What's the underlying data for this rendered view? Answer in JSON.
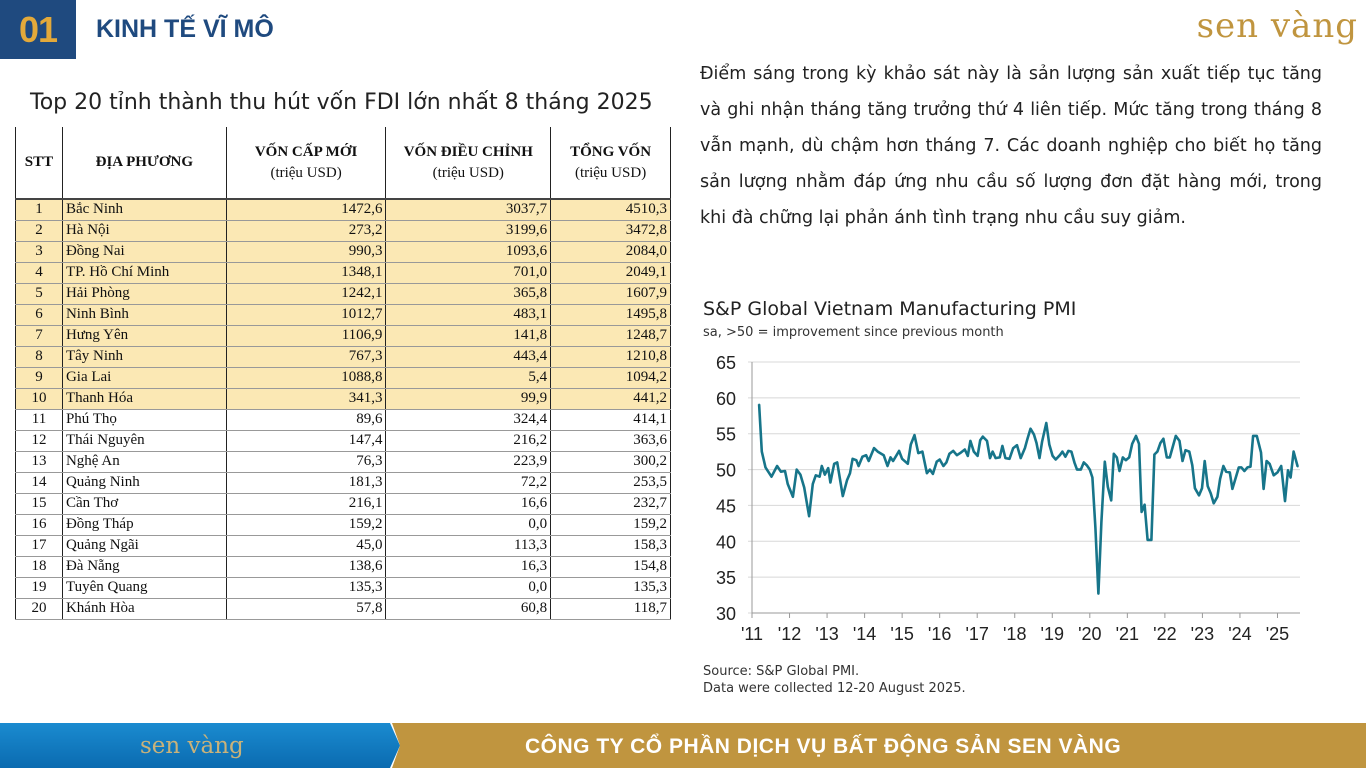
{
  "header": {
    "section_number": "01",
    "section_title": "KINH TẾ VĨ MÔ",
    "logo": "sen vàng"
  },
  "table": {
    "title": "Top 20 tỉnh thành thu hút vốn FDI lớn nhất 8 tháng 2025",
    "columns": [
      "STT",
      "ĐỊA PHƯƠNG",
      "VỐN CẤP MỚI",
      "(triệu USD)",
      "VỐN ĐIỀU CHỈNH",
      "(triệu USD)",
      "TỔNG VỐN",
      "(triệu USD)"
    ],
    "rows": [
      [
        "1",
        "Bắc Ninh",
        "1472,6",
        "3037,7",
        "4510,3"
      ],
      [
        "2",
        "Hà Nội",
        "273,2",
        "3199,6",
        "3472,8"
      ],
      [
        "3",
        "Đồng Nai",
        "990,3",
        "1093,6",
        "2084,0"
      ],
      [
        "4",
        "TP. Hồ Chí Minh",
        "1348,1",
        "701,0",
        "2049,1"
      ],
      [
        "5",
        "Hải Phòng",
        "1242,1",
        "365,8",
        "1607,9"
      ],
      [
        "6",
        "Ninh Bình",
        "1012,7",
        "483,1",
        "1495,8"
      ],
      [
        "7",
        "Hưng Yên",
        "1106,9",
        "141,8",
        "1248,7"
      ],
      [
        "8",
        "Tây Ninh",
        "767,3",
        "443,4",
        "1210,8"
      ],
      [
        "9",
        "Gia Lai",
        "1088,8",
        "5,4",
        "1094,2"
      ],
      [
        "10",
        "Thanh Hóa",
        "341,3",
        "99,9",
        "441,2"
      ],
      [
        "11",
        "Phú Thọ",
        "89,6",
        "324,4",
        "414,1"
      ],
      [
        "12",
        "Thái Nguyên",
        "147,4",
        "216,2",
        "363,6"
      ],
      [
        "13",
        "Nghệ An",
        "76,3",
        "223,9",
        "300,2"
      ],
      [
        "14",
        "Quảng Ninh",
        "181,3",
        "72,2",
        "253,5"
      ],
      [
        "15",
        "Cần Thơ",
        "216,1",
        "16,6",
        "232,7"
      ],
      [
        "16",
        "Đồng Tháp",
        "159,2",
        "0,0",
        "159,2"
      ],
      [
        "17",
        "Quảng Ngãi",
        "45,0",
        "113,3",
        "158,3"
      ],
      [
        "18",
        "Đà Nẵng",
        "138,6",
        "16,3",
        "154,8"
      ],
      [
        "19",
        "Tuyên Quang",
        "135,3",
        "0,0",
        "135,3"
      ],
      [
        "20",
        "Khánh Hòa",
        "57,8",
        "60,8",
        "118,7"
      ]
    ],
    "highlight_color": "#fbe8b4"
  },
  "paragraph": "Điểm sáng trong kỳ khảo sát này là sản lượng sản xuất tiếp tục tăng và ghi nhận tháng tăng trưởng thứ 4 liên tiếp. Mức tăng trong tháng 8 vẫn mạnh, dù chậm hơn tháng 7. Các doanh nghiệp cho biết họ tăng sản lượng nhằm đáp ứng nhu cầu số lượng đơn đặt hàng mới, trong khi đà chững lại phản ánh tình trạng nhu cầu suy giảm.",
  "chart_data": {
    "type": "line",
    "title": "S&P Global Vietnam Manufacturing PMI",
    "subtitle": "sa, >50 = improvement since previous month",
    "ylim": [
      30,
      65
    ],
    "yticks": [
      30,
      35,
      40,
      45,
      50,
      55,
      60,
      65
    ],
    "xlim": [
      2011,
      2025.6
    ],
    "xticks": [
      "'11",
      "'12",
      "'13",
      "'14",
      "'15",
      "'16",
      "'17",
      "'18",
      "'19",
      "'20",
      "'21",
      "'22",
      "'23",
      "'24",
      "'25"
    ],
    "grid": true,
    "color": "#17758a",
    "series": [
      {
        "name": "PMI",
        "points": [
          [
            2011.19,
            59.1
          ],
          [
            2011.26,
            52.5
          ],
          [
            2011.36,
            50.3
          ],
          [
            2011.52,
            49.0
          ],
          [
            2011.67,
            50.5
          ],
          [
            2011.77,
            49.7
          ],
          [
            2011.88,
            49.8
          ],
          [
            2011.95,
            48.0
          ],
          [
            2012.09,
            46.2
          ],
          [
            2012.19,
            50.0
          ],
          [
            2012.29,
            49.3
          ],
          [
            2012.39,
            47.5
          ],
          [
            2012.52,
            43.5
          ],
          [
            2012.62,
            48.0
          ],
          [
            2012.7,
            49.2
          ],
          [
            2012.8,
            49.0
          ],
          [
            2012.86,
            50.5
          ],
          [
            2012.94,
            49.3
          ],
          [
            2013.03,
            50.2
          ],
          [
            2013.09,
            48.2
          ],
          [
            2013.19,
            50.8
          ],
          [
            2013.27,
            51.0
          ],
          [
            2013.42,
            46.3
          ],
          [
            2013.53,
            48.5
          ],
          [
            2013.61,
            49.5
          ],
          [
            2013.68,
            51.5
          ],
          [
            2013.78,
            51.3
          ],
          [
            2013.84,
            50.5
          ],
          [
            2013.94,
            51.8
          ],
          [
            2014.04,
            52.0
          ],
          [
            2014.11,
            51.2
          ],
          [
            2014.25,
            53.0
          ],
          [
            2014.35,
            52.5
          ],
          [
            2014.51,
            52.0
          ],
          [
            2014.61,
            50.5
          ],
          [
            2014.69,
            51.7
          ],
          [
            2014.76,
            51.2
          ],
          [
            2014.92,
            52.6
          ],
          [
            2015.0,
            51.5
          ],
          [
            2015.15,
            50.8
          ],
          [
            2015.23,
            53.5
          ],
          [
            2015.33,
            54.8
          ],
          [
            2015.43,
            52.3
          ],
          [
            2015.54,
            52.5
          ],
          [
            2015.66,
            49.5
          ],
          [
            2015.74,
            50.0
          ],
          [
            2015.82,
            49.4
          ],
          [
            2015.92,
            51.1
          ],
          [
            2016.0,
            51.4
          ],
          [
            2016.1,
            50.5
          ],
          [
            2016.18,
            51.0
          ],
          [
            2016.26,
            52.2
          ],
          [
            2016.36,
            52.6
          ],
          [
            2016.46,
            52.0
          ],
          [
            2016.57,
            52.4
          ],
          [
            2016.67,
            52.8
          ],
          [
            2016.75,
            51.9
          ],
          [
            2016.82,
            54.0
          ],
          [
            2016.91,
            52.5
          ],
          [
            2017.01,
            51.9
          ],
          [
            2017.08,
            54.1
          ],
          [
            2017.15,
            54.6
          ],
          [
            2017.26,
            54.0
          ],
          [
            2017.34,
            51.6
          ],
          [
            2017.41,
            52.5
          ],
          [
            2017.49,
            51.6
          ],
          [
            2017.6,
            51.7
          ],
          [
            2017.67,
            53.3
          ],
          [
            2017.75,
            51.6
          ],
          [
            2017.86,
            51.5
          ],
          [
            2017.96,
            53.0
          ],
          [
            2018.06,
            53.4
          ],
          [
            2018.16,
            51.6
          ],
          [
            2018.27,
            53.0
          ],
          [
            2018.34,
            54.3
          ],
          [
            2018.42,
            55.7
          ],
          [
            2018.51,
            54.9
          ],
          [
            2018.58,
            53.7
          ],
          [
            2018.66,
            51.6
          ],
          [
            2018.73,
            53.9
          ],
          [
            2018.84,
            56.5
          ],
          [
            2018.92,
            53.5
          ],
          [
            2019.01,
            51.9
          ],
          [
            2019.09,
            51.4
          ],
          [
            2019.2,
            52.0
          ],
          [
            2019.27,
            52.5
          ],
          [
            2019.35,
            51.8
          ],
          [
            2019.43,
            52.6
          ],
          [
            2019.51,
            52.5
          ],
          [
            2019.59,
            51.0
          ],
          [
            2019.66,
            50.0
          ],
          [
            2019.76,
            50.0
          ],
          [
            2019.84,
            51.0
          ],
          [
            2019.92,
            50.6
          ],
          [
            2020.0,
            50.0
          ],
          [
            2020.07,
            48.9
          ],
          [
            2020.15,
            41.9
          ],
          [
            2020.23,
            32.7
          ],
          [
            2020.31,
            42.7
          ],
          [
            2020.4,
            51.1
          ],
          [
            2020.48,
            47.6
          ],
          [
            2020.57,
            45.7
          ],
          [
            2020.64,
            52.2
          ],
          [
            2020.72,
            51.7
          ],
          [
            2020.79,
            49.8
          ],
          [
            2020.88,
            51.7
          ],
          [
            2020.96,
            51.3
          ],
          [
            2021.05,
            51.7
          ],
          [
            2021.13,
            53.6
          ],
          [
            2021.23,
            54.7
          ],
          [
            2021.31,
            53.6
          ],
          [
            2021.38,
            44.1
          ],
          [
            2021.46,
            45.1
          ],
          [
            2021.54,
            40.2
          ],
          [
            2021.64,
            40.2
          ],
          [
            2021.72,
            52.1
          ],
          [
            2021.8,
            52.5
          ],
          [
            2021.88,
            53.7
          ],
          [
            2021.96,
            54.3
          ],
          [
            2022.05,
            51.7
          ],
          [
            2022.13,
            51.7
          ],
          [
            2022.29,
            54.7
          ],
          [
            2022.39,
            54.0
          ],
          [
            2022.47,
            51.2
          ],
          [
            2022.55,
            52.7
          ],
          [
            2022.65,
            52.5
          ],
          [
            2022.73,
            50.6
          ],
          [
            2022.8,
            47.4
          ],
          [
            2022.91,
            46.4
          ],
          [
            2022.99,
            47.4
          ],
          [
            2023.06,
            51.2
          ],
          [
            2023.14,
            47.7
          ],
          [
            2023.22,
            46.7
          ],
          [
            2023.3,
            45.3
          ],
          [
            2023.4,
            46.2
          ],
          [
            2023.47,
            48.7
          ],
          [
            2023.56,
            50.5
          ],
          [
            2023.63,
            49.7
          ],
          [
            2023.73,
            49.6
          ],
          [
            2023.8,
            47.3
          ],
          [
            2023.89,
            48.9
          ],
          [
            2023.97,
            50.3
          ],
          [
            2024.04,
            50.3
          ],
          [
            2024.12,
            49.8
          ],
          [
            2024.2,
            50.3
          ],
          [
            2024.28,
            50.4
          ],
          [
            2024.35,
            54.7
          ],
          [
            2024.45,
            54.7
          ],
          [
            2024.56,
            52.4
          ],
          [
            2024.63,
            47.3
          ],
          [
            2024.71,
            51.2
          ],
          [
            2024.79,
            50.8
          ],
          [
            2024.9,
            49.2
          ],
          [
            2025.0,
            49.6
          ],
          [
            2025.1,
            50.5
          ],
          [
            2025.2,
            45.6
          ],
          [
            2025.28,
            49.9
          ],
          [
            2025.35,
            48.9
          ],
          [
            2025.43,
            52.5
          ],
          [
            2025.54,
            50.4
          ]
        ]
      }
    ],
    "source": "Source: S&P Global PMI.",
    "note": "Data were collected 12-20 August 2025."
  },
  "footer": {
    "logo": "sen vàng",
    "company": "CÔNG TY CỔ PHẦN DỊCH VỤ BẤT ĐỘNG SẢN SEN VÀNG"
  }
}
